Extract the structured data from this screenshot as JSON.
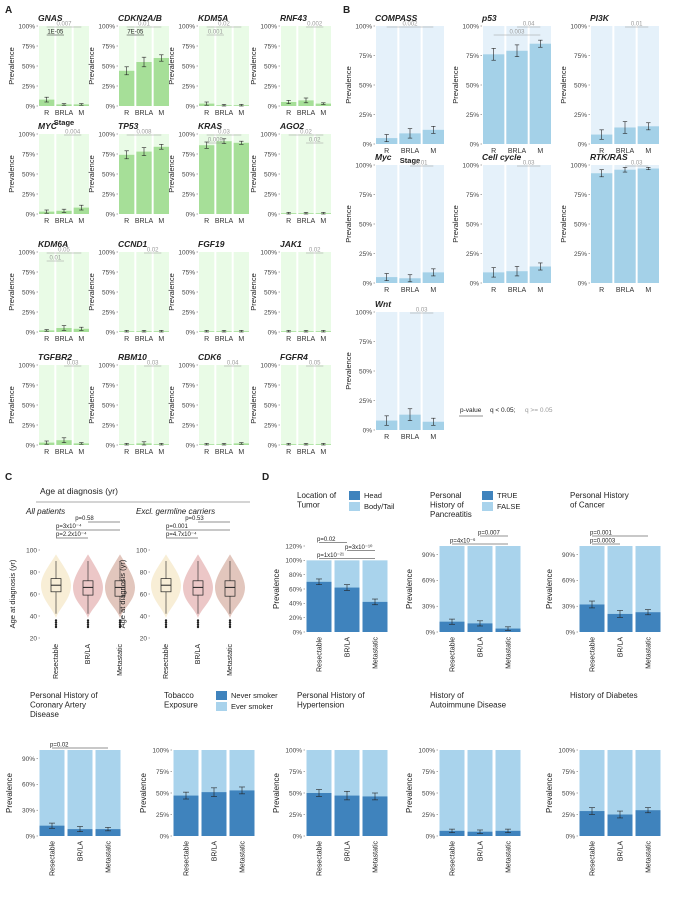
{
  "colors": {
    "green_bg": "#e9fbe6",
    "green_bar": "#a6df98",
    "blue_bg": "#e5f1fa",
    "blue_bar": "#a4d1e8",
    "dark_blue": "#3f83bd",
    "light_blue": "#a9d3ec",
    "sig_text": "#8a8a8a",
    "violin_resectable": "#f8eed6",
    "violin_brla": "#ecc7c7",
    "violin_metastatic": "#e2c6bd"
  },
  "panel_labels": {
    "a": "A",
    "b": "B",
    "c": "C",
    "d": "D"
  },
  "common": {
    "ylabel": "Prevalence",
    "stage_label": "Stage",
    "stages": [
      "R",
      "BRLA",
      "M"
    ],
    "yticks_pct": [
      "0%",
      "25%",
      "50%",
      "75%",
      "100%"
    ],
    "pvalue_legend_label": "p-value",
    "pvalue_legend_text": "q < 0.05;",
    "pvalue_legend_text_light": "q >= 0.05"
  },
  "chart_data": {
    "panel_a": {
      "type": "bar",
      "xlabel": "Stage",
      "ylabel": "Prevalence",
      "ylim": [
        0,
        100
      ],
      "categories": [
        "R",
        "BRLA",
        "M"
      ],
      "genes": [
        {
          "name": "GNAS",
          "values": [
            8,
            2,
            2
          ],
          "err": [
            3,
            1,
            1
          ],
          "sig": [
            {
              "label": "0.007",
              "from": 0,
              "to": 2,
              "dark": false
            },
            {
              "label": "1E-05",
              "from": 0,
              "to": 1,
              "dark": true
            }
          ],
          "stage_label": true
        },
        {
          "name": "CDKN2A/B",
          "values": [
            44,
            55,
            60
          ],
          "err": [
            5,
            6,
            4
          ],
          "sig": [
            {
              "label": "0.01",
              "from": 0,
              "to": 2,
              "dark": false
            },
            {
              "label": "7E-05",
              "from": 0,
              "to": 1,
              "dark": true
            }
          ]
        },
        {
          "name": "KDM5A",
          "values": [
            3,
            1,
            1
          ],
          "err": [
            2,
            1,
            1
          ],
          "sig": [
            {
              "label": "0.02",
              "from": 0,
              "to": 2,
              "dark": false
            },
            {
              "label": "0.001",
              "from": 0,
              "to": 1,
              "dark": false
            }
          ]
        },
        {
          "name": "RNF43",
          "values": [
            5,
            7,
            3
          ],
          "err": [
            2,
            3,
            1
          ],
          "sig": [
            {
              "label": "0.002",
              "from": 1,
              "to": 2,
              "dark": false
            }
          ]
        },
        {
          "name": "MYC",
          "values": [
            3,
            4,
            8
          ],
          "err": [
            2,
            2,
            3
          ],
          "sig": [
            {
              "label": "0.004",
              "from": 1,
              "to": 2,
              "dark": false
            }
          ]
        },
        {
          "name": "TP53",
          "values": [
            74,
            78,
            84
          ],
          "err": [
            5,
            5,
            3
          ],
          "sig": [
            {
              "label": "0.008",
              "from": 0,
              "to": 2,
              "dark": false
            }
          ]
        },
        {
          "name": "KRAS",
          "values": [
            86,
            91,
            89
          ],
          "err": [
            4,
            3,
            2
          ],
          "sig": [
            {
              "label": "0.03",
              "from": 0,
              "to": 2,
              "dark": false
            },
            {
              "label": "0.009",
              "from": 0,
              "to": 1,
              "dark": false
            }
          ]
        },
        {
          "name": "AGO2",
          "values": [
            1,
            1,
            1
          ],
          "err": [
            1,
            1,
            1
          ],
          "sig": [
            {
              "label": "0.02",
              "from": 0,
              "to": 2,
              "dark": false
            },
            {
              "label": "0.02",
              "from": 1,
              "to": 2,
              "dark": false
            }
          ]
        },
        {
          "name": "KDM6A",
          "values": [
            2,
            5,
            4
          ],
          "err": [
            1,
            3,
            2
          ],
          "sig": [
            {
              "label": "0.05",
              "from": 0,
              "to": 2,
              "dark": false
            },
            {
              "label": "0.01",
              "from": 0,
              "to": 1,
              "dark": false
            }
          ]
        },
        {
          "name": "CCND1",
          "values": [
            1,
            1,
            1
          ],
          "err": [
            1,
            1,
            1
          ],
          "sig": [
            {
              "label": "0.02",
              "from": 1,
              "to": 2,
              "dark": false
            }
          ]
        },
        {
          "name": "FGF19",
          "values": [
            1,
            1,
            1
          ],
          "err": [
            1,
            1,
            1
          ],
          "sig": []
        },
        {
          "name": "JAK1",
          "values": [
            1,
            1,
            1
          ],
          "err": [
            1,
            1,
            1
          ],
          "sig": [
            {
              "label": "0.02",
              "from": 1,
              "to": 2,
              "dark": false
            }
          ]
        },
        {
          "name": "TGFBR2",
          "values": [
            3,
            6,
            2
          ],
          "err": [
            2,
            3,
            1
          ],
          "sig": [
            {
              "label": "0.03",
              "from": 1,
              "to": 2,
              "dark": false
            }
          ]
        },
        {
          "name": "RBM10",
          "values": [
            1,
            2,
            1
          ],
          "err": [
            1,
            2,
            1
          ],
          "sig": [
            {
              "label": "0.03",
              "from": 1,
              "to": 2,
              "dark": false
            }
          ]
        },
        {
          "name": "CDK6",
          "values": [
            1,
            1,
            2
          ],
          "err": [
            1,
            1,
            1
          ],
          "sig": [
            {
              "label": "0.04",
              "from": 1,
              "to": 2,
              "dark": false
            }
          ]
        },
        {
          "name": "FGFR4",
          "values": [
            1,
            1,
            1
          ],
          "err": [
            1,
            1,
            1
          ],
          "sig": [
            {
              "label": "0.05",
              "from": 1,
              "to": 2,
              "dark": false
            }
          ]
        }
      ]
    },
    "panel_b": {
      "type": "bar",
      "xlabel": "Stage",
      "ylabel": "Prevalence",
      "ylim": [
        0,
        100
      ],
      "categories": [
        "R",
        "BRLA",
        "M"
      ],
      "pathways": [
        {
          "name": "COMPASS",
          "values": [
            5,
            9,
            12
          ],
          "err": [
            3,
            4,
            3
          ],
          "sig": [
            {
              "label": "0.002",
              "from": 0,
              "to": 2
            }
          ],
          "stage_label": true
        },
        {
          "name": "p53",
          "values": [
            76,
            79,
            85
          ],
          "err": [
            5,
            5,
            3
          ],
          "sig": [
            {
              "label": "0.04",
              "from": 1,
              "to": 2
            },
            {
              "label": "0.003",
              "from": 0,
              "to": 2
            }
          ]
        },
        {
          "name": "PI3K",
          "values": [
            8,
            14,
            15
          ],
          "err": [
            4,
            5,
            3
          ],
          "sig": [
            {
              "label": "0.01",
              "from": 1,
              "to": 2
            }
          ]
        },
        {
          "name": "Myc",
          "values": [
            5,
            4,
            9
          ],
          "err": [
            3,
            3,
            3
          ],
          "sig": [
            {
              "label": "0.01",
              "from": 1,
              "to": 2
            }
          ]
        },
        {
          "name": "Cell cycle",
          "values": [
            9,
            10,
            14
          ],
          "err": [
            4,
            4,
            3
          ],
          "sig": [
            {
              "label": "0.03",
              "from": 1,
              "to": 2
            }
          ]
        },
        {
          "name": "RTK/RAS",
          "values": [
            93,
            96,
            97
          ],
          "err": [
            3,
            2,
            1
          ],
          "sig": [
            {
              "label": "0.03",
              "from": 1,
              "to": 2
            }
          ]
        },
        {
          "name": "Wnt",
          "values": [
            8,
            13,
            7
          ],
          "err": [
            4,
            5,
            3
          ],
          "sig": [
            {
              "label": "0.03",
              "from": 1,
              "to": 2
            }
          ]
        }
      ]
    },
    "panel_c": {
      "type": "violin",
      "title": "Age at diagnosis (yr)",
      "ylabel": "Age at diagnosis (yr)",
      "ylim": [
        20,
        100
      ],
      "yticks": [
        20,
        40,
        60,
        80,
        100
      ],
      "categories": [
        "Resectable",
        "BR/LA",
        "Metastatic"
      ],
      "subplots": [
        {
          "title": "All patients",
          "medians": [
            68,
            66,
            66
          ],
          "q1": [
            62,
            59,
            58
          ],
          "q3": [
            74,
            72,
            72
          ],
          "pvalues": [
            {
              "label": "p=0.58",
              "from": 1,
              "to": 2
            },
            {
              "label": "p=3x10⁻⁴",
              "from": 0,
              "to": 2
            },
            {
              "label": "p=2.2x10⁻⁴",
              "from": 0,
              "to": 1
            }
          ]
        },
        {
          "title": "Excl. germline carriers",
          "medians": [
            68,
            66,
            66
          ],
          "q1": [
            62,
            59,
            58
          ],
          "q3": [
            74,
            72,
            72
          ],
          "pvalues": [
            {
              "label": "p=0.53",
              "from": 1,
              "to": 2
            },
            {
              "label": "p=0.001",
              "from": 0,
              "to": 2
            },
            {
              "label": "p=4.7x10⁻⁴",
              "from": 0,
              "to": 1
            }
          ]
        }
      ]
    },
    "panel_d": {
      "type": "stacked_bar",
      "ylabel": "Prevalence",
      "categories": [
        "Resectable",
        "BR/LA",
        "Metastatic"
      ],
      "charts": [
        {
          "title": [
            "Location of",
            "Tumor"
          ],
          "legend": [
            "Head",
            "Body/Tail"
          ],
          "ymax": 120,
          "yticks": [
            "0%",
            "20%",
            "40%",
            "60%",
            "80%",
            "100%",
            "120%"
          ],
          "values": [
            70,
            62,
            42
          ],
          "err": [
            4,
            4,
            4
          ],
          "pvalues": [
            {
              "label": "p=0.02",
              "from": 0,
              "to": 1
            },
            {
              "label": "p=3x10⁻¹⁰",
              "from": 1,
              "to": 2
            },
            {
              "label": "p=1x10⁻²¹",
              "from": 0,
              "to": 2
            }
          ]
        },
        {
          "title": [
            "Personal",
            "History of",
            "Pancreatitis"
          ],
          "legend": [
            "TRUE",
            "FALSE"
          ],
          "ymax": 100,
          "yticks": [
            "0%",
            "30%",
            "60%",
            "90%"
          ],
          "values": [
            12,
            10,
            4
          ],
          "err": [
            3,
            3,
            2
          ],
          "pvalues": [
            {
              "label": "p=0.007",
              "from": 1,
              "to": 2
            },
            {
              "label": "p=4x10⁻⁶",
              "from": 0,
              "to": 2
            }
          ]
        },
        {
          "title": [
            "Personal History",
            "of Cancer"
          ],
          "ymax": 100,
          "yticks": [
            "0%",
            "30%",
            "60%",
            "90%"
          ],
          "values": [
            32,
            21,
            23
          ],
          "err": [
            4,
            4,
            3
          ],
          "pvalues": [
            {
              "label": "p=0.001",
              "from": 0,
              "to": 2
            },
            {
              "label": "p=0.0003",
              "from": 0,
              "to": 1
            }
          ]
        },
        {
          "title": [
            "Personal History of",
            "Coronary Artery",
            "Disease"
          ],
          "ymax": 100,
          "yticks": [
            "0%",
            "30%",
            "60%",
            "90%"
          ],
          "values": [
            12,
            8,
            8
          ],
          "err": [
            3,
            3,
            2
          ],
          "pvalues": [
            {
              "label": "p=0.02",
              "from": 0,
              "to": 2
            }
          ]
        },
        {
          "title": [
            "Tobacco",
            "Exposure"
          ],
          "legend": [
            "Never smoker",
            "Ever smoker"
          ],
          "ymax": 100,
          "yticks": [
            "0%",
            "25%",
            "50%",
            "75%",
            "100%"
          ],
          "values": [
            47,
            51,
            53
          ],
          "err": [
            4,
            5,
            4
          ],
          "pvalues": []
        },
        {
          "title": [
            "Personal History of",
            "Hypertension"
          ],
          "ymax": 100,
          "yticks": [
            "0%",
            "25%",
            "50%",
            "75%",
            "100%"
          ],
          "values": [
            50,
            47,
            46
          ],
          "err": [
            4,
            5,
            4
          ],
          "pvalues": []
        },
        {
          "title": [
            "History of",
            "Autoimmune Disease"
          ],
          "ymax": 100,
          "yticks": [
            "0%",
            "25%",
            "50%",
            "75%",
            "100%"
          ],
          "values": [
            6,
            5,
            6
          ],
          "err": [
            2,
            2,
            2
          ],
          "pvalues": []
        },
        {
          "title": [
            "History of Diabetes"
          ],
          "ymax": 100,
          "yticks": [
            "0%",
            "25%",
            "50%",
            "75%",
            "100%"
          ],
          "values": [
            29,
            25,
            30
          ],
          "err": [
            4,
            4,
            3
          ],
          "pvalues": []
        }
      ]
    }
  }
}
